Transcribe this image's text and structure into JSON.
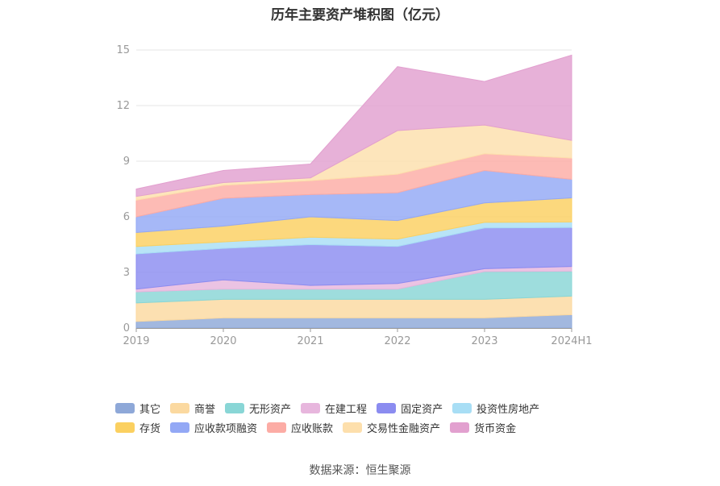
{
  "chart_data": {
    "type": "area",
    "stacked": true,
    "title": "历年主要资产堆积图（亿元）",
    "source": "数据来源：恒生聚源",
    "categories": [
      "2019",
      "2020",
      "2021",
      "2022",
      "2023",
      "2024H1"
    ],
    "ylim": [
      0,
      15
    ],
    "yticks": [
      0,
      3,
      6,
      9,
      12,
      15
    ],
    "grid": true,
    "legend_position": "bottom",
    "series": [
      {
        "name": "其它",
        "color": "#8ea8d8",
        "values": [
          0.35,
          0.55,
          0.55,
          0.55,
          0.55,
          0.72
        ]
      },
      {
        "name": "商誉",
        "color": "#fbd9a0",
        "values": [
          1.0,
          1.0,
          1.0,
          1.0,
          1.0,
          1.0
        ]
      },
      {
        "name": "无形资产",
        "color": "#89d6d6",
        "values": [
          0.6,
          0.55,
          0.55,
          0.55,
          1.5,
          1.35
        ]
      },
      {
        "name": "在建工程",
        "color": "#e7b6dd",
        "values": [
          0.15,
          0.5,
          0.2,
          0.3,
          0.15,
          0.25
        ]
      },
      {
        "name": "固定资产",
        "color": "#8b8cf0",
        "values": [
          1.9,
          1.7,
          2.2,
          2.0,
          2.2,
          2.1
        ]
      },
      {
        "name": "投资性房地产",
        "color": "#a8def5",
        "values": [
          0.4,
          0.35,
          0.4,
          0.4,
          0.3,
          0.3
        ]
      },
      {
        "name": "存货",
        "color": "#fbd060",
        "values": [
          0.75,
          0.85,
          1.1,
          1.0,
          1.05,
          1.3
        ]
      },
      {
        "name": "应收款项融资",
        "color": "#93a8f5",
        "values": [
          0.85,
          1.5,
          1.2,
          1.5,
          1.75,
          1.0
        ]
      },
      {
        "name": "应收账款",
        "color": "#fcaca5",
        "values": [
          0.9,
          0.7,
          0.75,
          1.0,
          0.9,
          1.15
        ]
      },
      {
        "name": "交易性金融资产",
        "color": "#fddfac",
        "values": [
          0.2,
          0.15,
          0.15,
          2.35,
          1.55,
          0.95
        ]
      },
      {
        "name": "货币资金",
        "color": "#e2a0cf",
        "values": [
          0.4,
          0.65,
          0.75,
          3.45,
          2.35,
          4.6
        ]
      }
    ]
  },
  "legend_rows": [
    [
      0,
      1,
      2,
      3,
      4,
      5
    ],
    [
      6,
      7,
      8,
      9,
      10
    ]
  ]
}
